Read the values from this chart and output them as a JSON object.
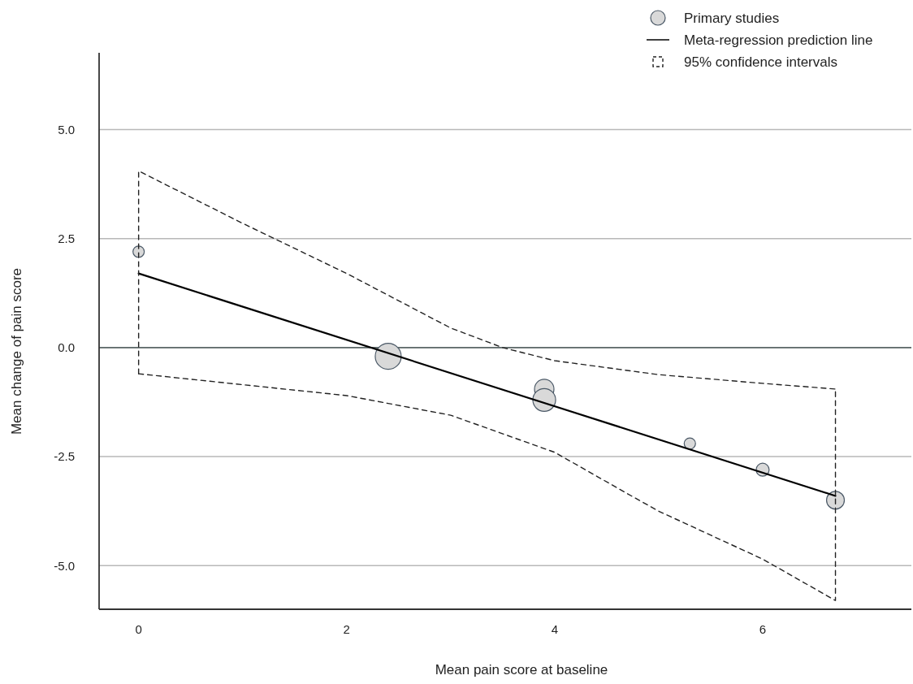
{
  "chart_data": {
    "type": "scatter",
    "xlabel": "Mean pain score at baseline",
    "ylabel": "Mean change of pain score",
    "xlim": [
      -0.38,
      7.43
    ],
    "ylim": [
      -6.0,
      6.76
    ],
    "xticks": [
      0,
      2,
      4,
      6
    ],
    "yticks": [
      {
        "value": -5,
        "label": "-5.0"
      },
      {
        "value": -2.5,
        "label": "-2.5"
      },
      {
        "value": 0,
        "label": "0.0"
      },
      {
        "value": 2.5,
        "label": "2.5"
      },
      {
        "value": 5,
        "label": "5.0"
      }
    ],
    "grid": "y",
    "legend": "top right",
    "ref_lines": [
      {
        "axis": "y",
        "value": 0,
        "color": "#5f6b6b"
      }
    ],
    "series": [
      {
        "name": "Primary studies",
        "color": "#d9d9d9",
        "marker": "circle",
        "x": [
          0,
          2.4,
          3.9,
          3.9,
          5.3,
          6.0,
          6.7
        ],
        "values": [
          2.2,
          -0.2,
          -0.95,
          -1.2,
          -2.2,
          -2.8,
          -3.5
        ],
        "sizes": [
          0.19,
          1,
          0.56,
          0.77,
          0.19,
          0.25,
          0.47
        ]
      },
      {
        "name": "Meta-regression prediction line",
        "type": "line",
        "color": "#000000",
        "line_style": "solid",
        "marker": "none",
        "x": [
          0,
          6.7
        ],
        "values": [
          1.7,
          -3.4
        ]
      },
      {
        "name": "95% confidence intervals",
        "type": "line",
        "color": "#222222",
        "line_style": "dashed",
        "marker": "none",
        "x": [
          0,
          0,
          1,
          2,
          3,
          3.5,
          4,
          5,
          6,
          6.7
        ],
        "values": [
          -0.6,
          4.05,
          2.85,
          1.7,
          0.45,
          0,
          -0.3,
          -0.62,
          -0.82,
          -0.95
        ]
      },
      {
        "type": "line",
        "color": "#222222",
        "line_style": "dashed",
        "marker": "none",
        "x": [
          0,
          1,
          2,
          3,
          4,
          4.7,
          5,
          6,
          6.7,
          6.7
        ],
        "values": [
          -0.6,
          -0.85,
          -1.1,
          -1.55,
          -2.4,
          -3.35,
          -3.75,
          -4.85,
          -5.8,
          -0.95
        ]
      }
    ]
  }
}
